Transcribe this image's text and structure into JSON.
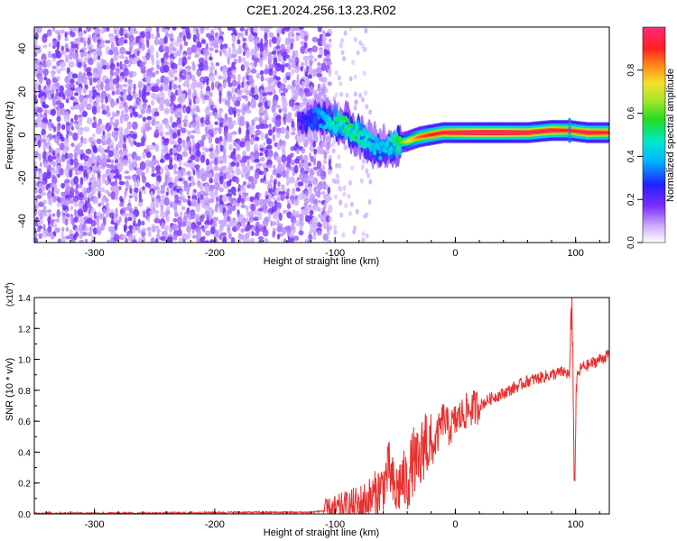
{
  "title": "C2E1.2024.256.13.23.R02",
  "chart_data": [
    {
      "type": "heatmap",
      "xlabel": "Height of straight line (km)",
      "ylabel": "Frequency (Hz)",
      "xlim": [
        -350,
        128
      ],
      "ylim": [
        -50,
        50
      ],
      "x_ticks": [
        -300,
        -200,
        -100,
        0,
        100
      ],
      "x_tick_labels": [
        "-300",
        "-200",
        "-100",
        "0",
        "100"
      ],
      "y_ticks": [
        -40,
        -20,
        0,
        20,
        40
      ],
      "y_tick_labels": [
        "-40",
        "-20",
        "0",
        "20",
        "40"
      ],
      "colorbar": {
        "label": "Normalized spectral amplitude",
        "range": [
          0,
          1
        ],
        "ticks": [
          0.0,
          0.2,
          0.4,
          0.6,
          0.8
        ],
        "tick_labels": [
          "0.0",
          "0.2",
          "0.4",
          "0.6",
          "0.8"
        ]
      },
      "noise_region": {
        "x_range": [
          -350,
          -105
        ],
        "level": 0.15
      },
      "signal_track": [
        {
          "x": -130,
          "freq": 6,
          "amplitude": 0.22
        },
        {
          "x": -115,
          "freq": 8,
          "amplitude": 0.35
        },
        {
          "x": -100,
          "freq": 6,
          "amplitude": 0.5
        },
        {
          "x": -90,
          "freq": 4,
          "amplitude": 0.55
        },
        {
          "x": -80,
          "freq": 0,
          "amplitude": 0.5
        },
        {
          "x": -70,
          "freq": -4,
          "amplitude": 0.45
        },
        {
          "x": -62,
          "freq": -7,
          "amplitude": 0.4
        },
        {
          "x": -55,
          "freq": -4,
          "amplitude": 0.45
        },
        {
          "x": -48,
          "freq": -4,
          "amplitude": 0.55
        },
        {
          "x": -40,
          "freq": -3,
          "amplitude": 0.7
        },
        {
          "x": -30,
          "freq": -1,
          "amplitude": 0.85
        },
        {
          "x": -20,
          "freq": 0,
          "amplitude": 0.9
        },
        {
          "x": -10,
          "freq": 1,
          "amplitude": 0.92
        },
        {
          "x": 0,
          "freq": 1,
          "amplitude": 0.95
        },
        {
          "x": 20,
          "freq": 1,
          "amplitude": 1.0
        },
        {
          "x": 40,
          "freq": 1,
          "amplitude": 1.0
        },
        {
          "x": 60,
          "freq": 1,
          "amplitude": 0.95
        },
        {
          "x": 80,
          "freq": 2,
          "amplitude": 0.95
        },
        {
          "x": 95,
          "freq": 2,
          "amplitude": 0.9
        },
        {
          "x": 110,
          "freq": 1,
          "amplitude": 0.95
        },
        {
          "x": 128,
          "freq": 1,
          "amplitude": 0.9
        }
      ]
    },
    {
      "type": "line",
      "xlabel": "Height of straight line (km)",
      "ylabel": "SNR (10 * v/v)",
      "y_scale_label": "(x10",
      "y_scale_exponent": "4",
      "y_scale_suffix": ")",
      "xlim": [
        -350,
        128
      ],
      "ylim": [
        0,
        1.4
      ],
      "x_ticks": [
        -300,
        -200,
        -100,
        0,
        100
      ],
      "x_tick_labels": [
        "-300",
        "-200",
        "-100",
        "0",
        "100"
      ],
      "y_ticks": [
        0.0,
        0.2,
        0.4,
        0.6,
        0.8,
        1.0,
        1.2,
        1.4
      ],
      "y_tick_labels": [
        "0.0",
        "0.2",
        "0.4",
        "0.6",
        "0.8",
        "1.0",
        "1.2",
        "1.4"
      ],
      "series": [
        {
          "color": "#e8302e",
          "x": [
            -350,
            -250,
            -180,
            -120,
            -100,
            -80,
            -70,
            -60,
            -55,
            -50,
            -45,
            -40,
            -35,
            -30,
            -25,
            -20,
            -15,
            -10,
            -5,
            0,
            10,
            20,
            30,
            40,
            50,
            60,
            70,
            80,
            90,
            95,
            97,
            99,
            101,
            105,
            110,
            120,
            128
          ],
          "values": [
            0.005,
            0.005,
            0.01,
            0.01,
            0.03,
            0.06,
            0.1,
            0.18,
            0.3,
            0.12,
            0.22,
            0.2,
            0.35,
            0.3,
            0.5,
            0.4,
            0.5,
            0.62,
            0.55,
            0.6,
            0.67,
            0.7,
            0.75,
            0.78,
            0.82,
            0.86,
            0.88,
            0.9,
            0.92,
            0.9,
            1.4,
            0.2,
            0.88,
            0.95,
            0.96,
            1.0,
            1.03
          ]
        }
      ]
    }
  ]
}
